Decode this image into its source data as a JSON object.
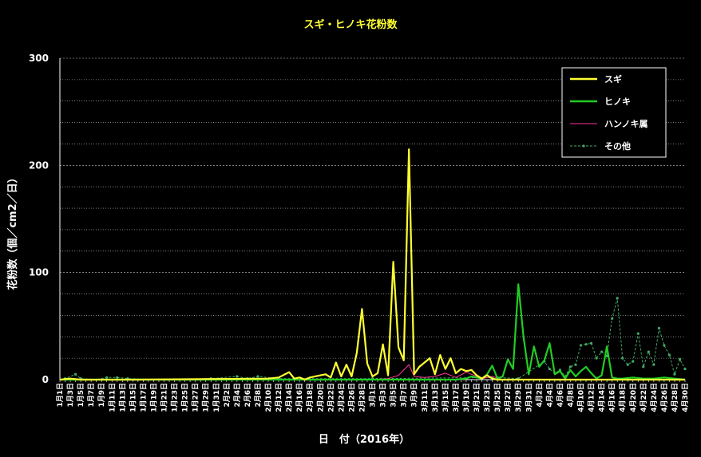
{
  "chart_data": {
    "type": "line",
    "title": "スギ・ヒノキ花粉数",
    "xlabel": "日　付（2016年）",
    "ylabel": "花粉数（個／cm2／日）",
    "ylim": [
      0,
      300
    ],
    "yticks": [
      0,
      100,
      200,
      300
    ],
    "grid": true,
    "legend_position": "top-right",
    "x_start": "2016-01-01",
    "x_end": "2016-04-30",
    "x_tick_labels": [
      "1月1日",
      "1月3日",
      "1月5日",
      "1月7日",
      "1月9日",
      "1月11日",
      "1月13日",
      "1月15日",
      "1月17日",
      "1月19日",
      "1月21日",
      "1月23日",
      "1月25日",
      "1月27日",
      "1月29日",
      "1月31日",
      "2月2日",
      "2月4日",
      "2月6日",
      "2月8日",
      "2月10日",
      "2月12日",
      "2月14日",
      "2月16日",
      "2月18日",
      "2月20日",
      "2月22日",
      "2月24日",
      "2月26日",
      "2月28日",
      "3月1日",
      "3月3日",
      "3月5日",
      "3月7日",
      "3月9日",
      "3月11日",
      "3月13日",
      "3月15日",
      "3月17日",
      "3月19日",
      "3月21日",
      "3月23日",
      "3月25日",
      "3月27日",
      "3月29日",
      "3月31日",
      "4月2日",
      "4月4日",
      "4月6日",
      "4月8日",
      "4月10日",
      "4月12日",
      "4月14日",
      "4月16日",
      "4月18日",
      "4月20日",
      "4月22日",
      "4月24日",
      "4月26日",
      "4月28日",
      "4月30日"
    ],
    "series": [
      {
        "name": "スギ",
        "color": "#ffff33",
        "style": "solid",
        "points": [
          [
            "2016-01-01",
            0
          ],
          [
            "2016-01-03",
            1
          ],
          [
            "2016-01-05",
            0
          ],
          [
            "2016-01-15",
            0
          ],
          [
            "2016-02-10",
            1
          ],
          [
            "2016-02-12",
            2
          ],
          [
            "2016-02-14",
            7
          ],
          [
            "2016-02-15",
            1
          ],
          [
            "2016-02-16",
            2
          ],
          [
            "2016-02-17",
            0
          ],
          [
            "2016-02-18",
            2
          ],
          [
            "2016-02-20",
            4
          ],
          [
            "2016-02-21",
            5
          ],
          [
            "2016-02-22",
            2
          ],
          [
            "2016-02-23",
            16
          ],
          [
            "2016-02-24",
            3
          ],
          [
            "2016-02-25",
            14
          ],
          [
            "2016-02-26",
            3
          ],
          [
            "2016-02-27",
            25
          ],
          [
            "2016-02-28",
            66
          ],
          [
            "2016-02-29",
            15
          ],
          [
            "2016-03-01",
            3
          ],
          [
            "2016-03-02",
            6
          ],
          [
            "2016-03-03",
            33
          ],
          [
            "2016-03-04",
            4
          ],
          [
            "2016-03-05",
            110
          ],
          [
            "2016-03-06",
            30
          ],
          [
            "2016-03-07",
            18
          ],
          [
            "2016-03-08",
            215
          ],
          [
            "2016-03-09",
            5
          ],
          [
            "2016-03-10",
            12
          ],
          [
            "2016-03-11",
            16
          ],
          [
            "2016-03-12",
            20
          ],
          [
            "2016-03-13",
            5
          ],
          [
            "2016-03-14",
            23
          ],
          [
            "2016-03-15",
            10
          ],
          [
            "2016-03-16",
            20
          ],
          [
            "2016-03-17",
            6
          ],
          [
            "2016-03-18",
            10
          ],
          [
            "2016-03-19",
            8
          ],
          [
            "2016-03-20",
            9
          ],
          [
            "2016-03-21",
            4
          ],
          [
            "2016-03-22",
            1
          ],
          [
            "2016-03-23",
            4
          ],
          [
            "2016-03-24",
            1
          ],
          [
            "2016-03-25",
            0
          ],
          [
            "2016-04-30",
            0
          ]
        ]
      },
      {
        "name": "ヒノキ",
        "color": "#22cc22",
        "style": "solid",
        "points": [
          [
            "2016-01-01",
            0
          ],
          [
            "2016-03-15",
            0
          ],
          [
            "2016-03-17",
            0
          ],
          [
            "2016-03-19",
            1
          ],
          [
            "2016-03-20",
            3
          ],
          [
            "2016-03-21",
            2
          ],
          [
            "2016-03-22",
            1
          ],
          [
            "2016-03-23",
            5
          ],
          [
            "2016-03-24",
            13
          ],
          [
            "2016-03-25",
            1
          ],
          [
            "2016-03-26",
            3
          ],
          [
            "2016-03-27",
            19
          ],
          [
            "2016-03-28",
            10
          ],
          [
            "2016-03-29",
            89
          ],
          [
            "2016-03-30",
            40
          ],
          [
            "2016-03-31",
            5
          ],
          [
            "2016-04-01",
            31
          ],
          [
            "2016-04-02",
            12
          ],
          [
            "2016-04-03",
            18
          ],
          [
            "2016-04-04",
            34
          ],
          [
            "2016-04-05",
            5
          ],
          [
            "2016-04-06",
            8
          ],
          [
            "2016-04-07",
            1
          ],
          [
            "2016-04-08",
            9
          ],
          [
            "2016-04-09",
            3
          ],
          [
            "2016-04-10",
            8
          ],
          [
            "2016-04-11",
            12
          ],
          [
            "2016-04-12",
            6
          ],
          [
            "2016-04-13",
            1
          ],
          [
            "2016-04-14",
            4
          ],
          [
            "2016-04-15",
            31
          ],
          [
            "2016-04-16",
            2
          ],
          [
            "2016-04-17",
            1
          ],
          [
            "2016-04-18",
            1
          ],
          [
            "2016-04-20",
            2
          ],
          [
            "2016-04-22",
            1
          ],
          [
            "2016-04-24",
            1
          ],
          [
            "2016-04-26",
            2
          ],
          [
            "2016-04-28",
            1
          ],
          [
            "2016-04-30",
            0
          ]
        ]
      },
      {
        "name": "ハンノキ属",
        "color": "#ff3399",
        "style": "solid",
        "points": [
          [
            "2016-01-01",
            0
          ],
          [
            "2016-03-01",
            0
          ],
          [
            "2016-03-04",
            1
          ],
          [
            "2016-03-06",
            4
          ],
          [
            "2016-03-08",
            14
          ],
          [
            "2016-03-09",
            3
          ],
          [
            "2016-03-11",
            2
          ],
          [
            "2016-03-13",
            3
          ],
          [
            "2016-03-15",
            6
          ],
          [
            "2016-03-16",
            4
          ],
          [
            "2016-03-17",
            2
          ],
          [
            "2016-03-19",
            7
          ],
          [
            "2016-03-20",
            5
          ],
          [
            "2016-03-21",
            3
          ],
          [
            "2016-03-22",
            1
          ],
          [
            "2016-03-24",
            3
          ],
          [
            "2016-03-26",
            0
          ],
          [
            "2016-04-30",
            0
          ]
        ]
      },
      {
        "name": "その他",
        "color": "#44aa66",
        "style": "dashed-marker",
        "points": [
          [
            "2016-01-01",
            0
          ],
          [
            "2016-01-02",
            1
          ],
          [
            "2016-01-04",
            5
          ],
          [
            "2016-01-05",
            1
          ],
          [
            "2016-01-08",
            0
          ],
          [
            "2016-01-10",
            2
          ],
          [
            "2016-01-12",
            2
          ],
          [
            "2016-01-14",
            1
          ],
          [
            "2016-01-20",
            0
          ],
          [
            "2016-01-30",
            1
          ],
          [
            "2016-02-04",
            3
          ],
          [
            "2016-02-06",
            1
          ],
          [
            "2016-02-08",
            3
          ],
          [
            "2016-02-12",
            1
          ],
          [
            "2016-03-01",
            1
          ],
          [
            "2016-03-25",
            2
          ],
          [
            "2016-03-29",
            1
          ],
          [
            "2016-04-03",
            17
          ],
          [
            "2016-04-04",
            10
          ],
          [
            "2016-04-05",
            6
          ],
          [
            "2016-04-06",
            9
          ],
          [
            "2016-04-07",
            3
          ],
          [
            "2016-04-08",
            12
          ],
          [
            "2016-04-09",
            14
          ],
          [
            "2016-04-10",
            32
          ],
          [
            "2016-04-11",
            33
          ],
          [
            "2016-04-12",
            34
          ],
          [
            "2016-04-13",
            20
          ],
          [
            "2016-04-14",
            26
          ],
          [
            "2016-04-15",
            22
          ],
          [
            "2016-04-16",
            57
          ],
          [
            "2016-04-17",
            76
          ],
          [
            "2016-04-18",
            20
          ],
          [
            "2016-04-19",
            14
          ],
          [
            "2016-04-20",
            17
          ],
          [
            "2016-04-21",
            43
          ],
          [
            "2016-04-22",
            12
          ],
          [
            "2016-04-23",
            26
          ],
          [
            "2016-04-24",
            14
          ],
          [
            "2016-04-25",
            48
          ],
          [
            "2016-04-26",
            32
          ],
          [
            "2016-04-27",
            23
          ],
          [
            "2016-04-28",
            5
          ],
          [
            "2016-04-29",
            19
          ],
          [
            "2016-04-30",
            10
          ]
        ]
      }
    ]
  }
}
